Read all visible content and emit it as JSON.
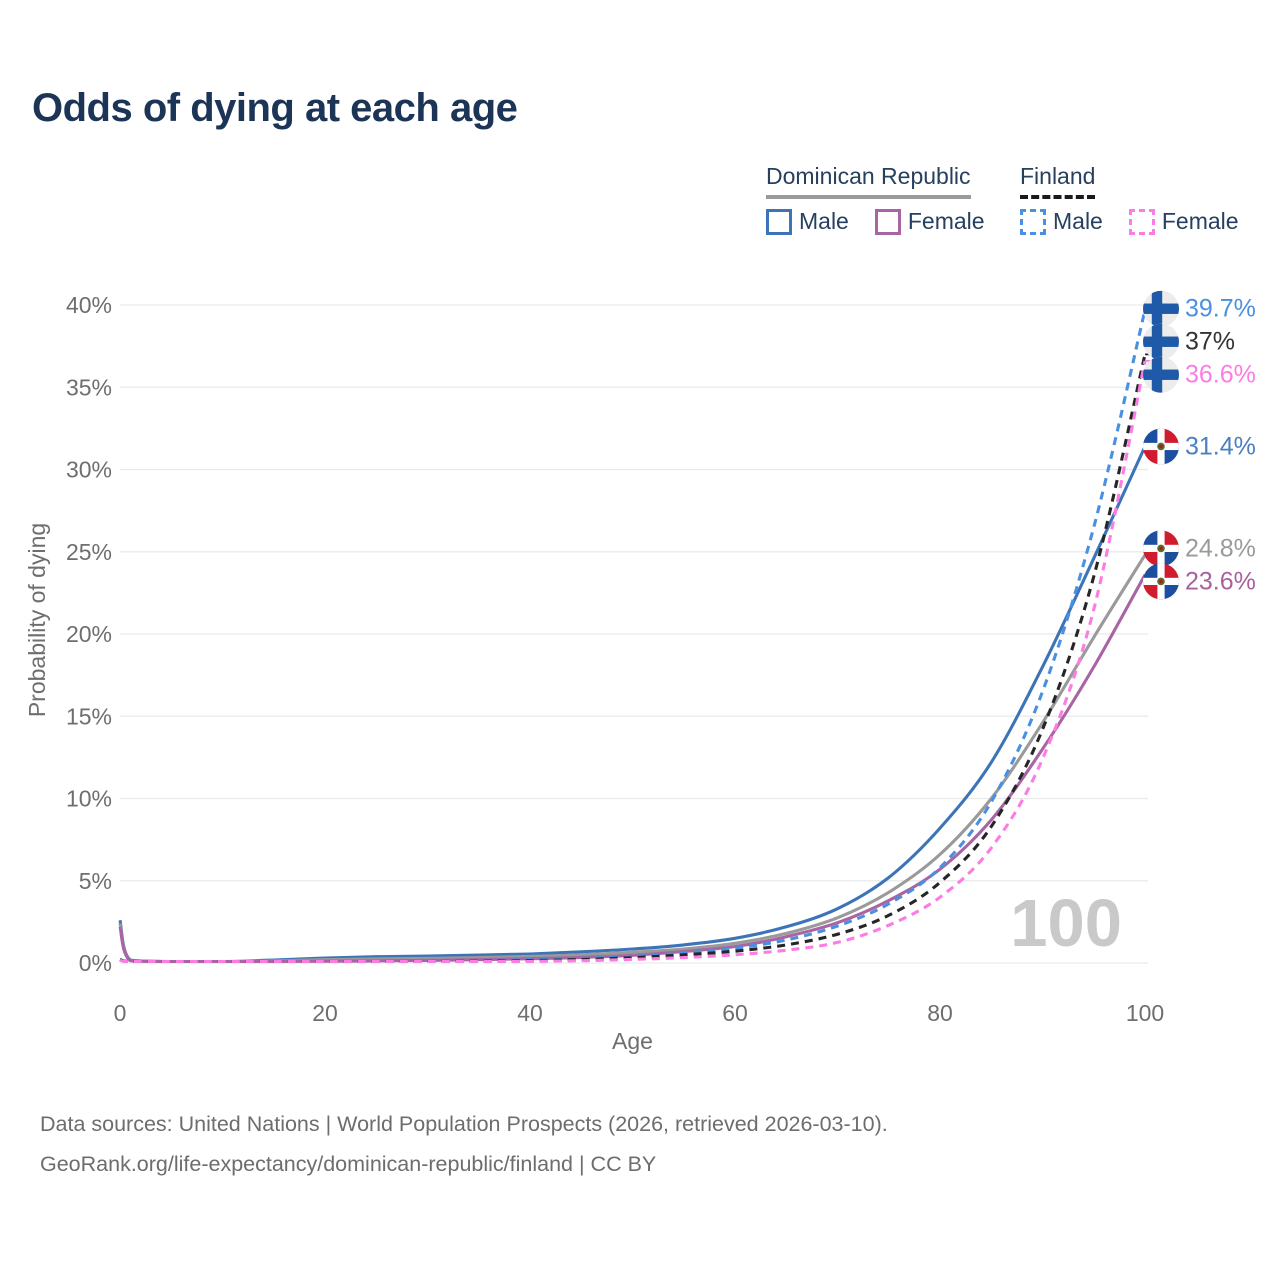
{
  "title": "Odds of dying at each age",
  "legend": {
    "groups": [
      {
        "name": "Dominican Republic",
        "line_style": "solid",
        "line_color": "#9a9a9a",
        "items": [
          {
            "label": "Male",
            "color": "#3d74b8",
            "dash": false
          },
          {
            "label": "Female",
            "color": "#a864a3",
            "dash": false
          }
        ]
      },
      {
        "name": "Finland",
        "line_style": "dashed",
        "line_color": "#1a1a1a",
        "items": [
          {
            "label": "Male",
            "color": "#4a90e2",
            "dash": true
          },
          {
            "label": "Female",
            "color": "#fb7ce3",
            "dash": true
          }
        ]
      }
    ]
  },
  "chart_data": {
    "type": "line",
    "title": "Odds of dying at each age",
    "xlabel": "Age",
    "ylabel": "Probability of dying",
    "xlim": [
      0,
      100
    ],
    "ylim": [
      0,
      40
    ],
    "x_ticks": [
      0,
      20,
      40,
      60,
      80,
      100
    ],
    "y_ticks": [
      0,
      5,
      10,
      15,
      20,
      25,
      30,
      35,
      40
    ],
    "y_tick_suffix": "%",
    "grid": "horizontal",
    "watermark": "100",
    "ages": [
      0,
      1,
      5,
      10,
      15,
      20,
      25,
      30,
      35,
      40,
      45,
      50,
      55,
      60,
      65,
      70,
      75,
      80,
      85,
      90,
      95,
      100
    ],
    "series": [
      {
        "name": "Dominican Republic Male",
        "country": "Dominican Republic",
        "sex": "Male",
        "flag": "do",
        "color": "#3d74b8",
        "label_color": "#4a7fc1",
        "dash": false,
        "end_value": 31.4,
        "end_label": "31.4%",
        "values": [
          2.6,
          0.18,
          0.06,
          0.06,
          0.18,
          0.3,
          0.38,
          0.42,
          0.48,
          0.55,
          0.68,
          0.85,
          1.1,
          1.5,
          2.2,
          3.3,
          5.2,
          8.2,
          12.2,
          18.0,
          24.6,
          31.4
        ]
      },
      {
        "name": "Dominican Republic All",
        "country": "Dominican Republic",
        "sex": "All",
        "flag": "do",
        "color": "#9a9a9a",
        "label_color": "#9a9a9a",
        "dash": false,
        "end_value": 24.8,
        "end_label": "24.8%",
        "values": [
          2.4,
          0.16,
          0.05,
          0.05,
          0.13,
          0.2,
          0.25,
          0.28,
          0.33,
          0.4,
          0.5,
          0.65,
          0.85,
          1.2,
          1.8,
          2.75,
          4.3,
          6.6,
          10.0,
          14.6,
          19.8,
          24.8
        ]
      },
      {
        "name": "Dominican Republic Female",
        "country": "Dominican Republic",
        "sex": "Female",
        "flag": "do",
        "color": "#a864a3",
        "label_color": "#a9609c",
        "dash": false,
        "end_value": 23.6,
        "end_label": "23.6%",
        "values": [
          2.2,
          0.14,
          0.05,
          0.05,
          0.09,
          0.11,
          0.13,
          0.16,
          0.2,
          0.26,
          0.34,
          0.47,
          0.7,
          1.0,
          1.6,
          2.45,
          3.8,
          5.7,
          8.7,
          13.0,
          18.0,
          23.6
        ]
      },
      {
        "name": "Finland Male",
        "country": "Finland",
        "sex": "Male",
        "flag": "fi",
        "color": "#4a90e2",
        "label_color": "#4a90e2",
        "dash": true,
        "end_value": 39.7,
        "end_label": "39.7%",
        "values": [
          0.22,
          0.02,
          0.01,
          0.01,
          0.04,
          0.08,
          0.1,
          0.12,
          0.15,
          0.2,
          0.28,
          0.4,
          0.6,
          0.9,
          1.4,
          2.25,
          3.6,
          5.8,
          9.8,
          16.5,
          26.5,
          39.7
        ]
      },
      {
        "name": "Finland All",
        "country": "Finland",
        "sex": "All",
        "flag": "fi",
        "color": "#262626",
        "label_color": "#333333",
        "dash": true,
        "end_value": 37,
        "end_label": "37%",
        "values": [
          0.2,
          0.02,
          0.01,
          0.01,
          0.03,
          0.06,
          0.07,
          0.09,
          0.11,
          0.15,
          0.21,
          0.32,
          0.5,
          0.72,
          1.1,
          1.75,
          2.9,
          4.9,
          8.3,
          14.2,
          23.5,
          37.0
        ]
      },
      {
        "name": "Finland Female",
        "country": "Finland",
        "sex": "Female",
        "flag": "fi",
        "color": "#fb7ce3",
        "label_color": "#fb7ce3",
        "dash": true,
        "end_value": 36.6,
        "end_label": "36.6%",
        "values": [
          0.17,
          0.015,
          0.01,
          0.01,
          0.02,
          0.03,
          0.04,
          0.05,
          0.07,
          0.1,
          0.14,
          0.22,
          0.33,
          0.5,
          0.78,
          1.25,
          2.3,
          4.0,
          7.0,
          12.4,
          21.5,
          36.6
        ]
      }
    ]
  },
  "footer": {
    "line1": "Data sources: United Nations | World Population Prospects (2026, retrieved 2026-03-10).",
    "line2": "GeoRank.org/life-expectancy/dominican-republic/finland | CC BY"
  }
}
